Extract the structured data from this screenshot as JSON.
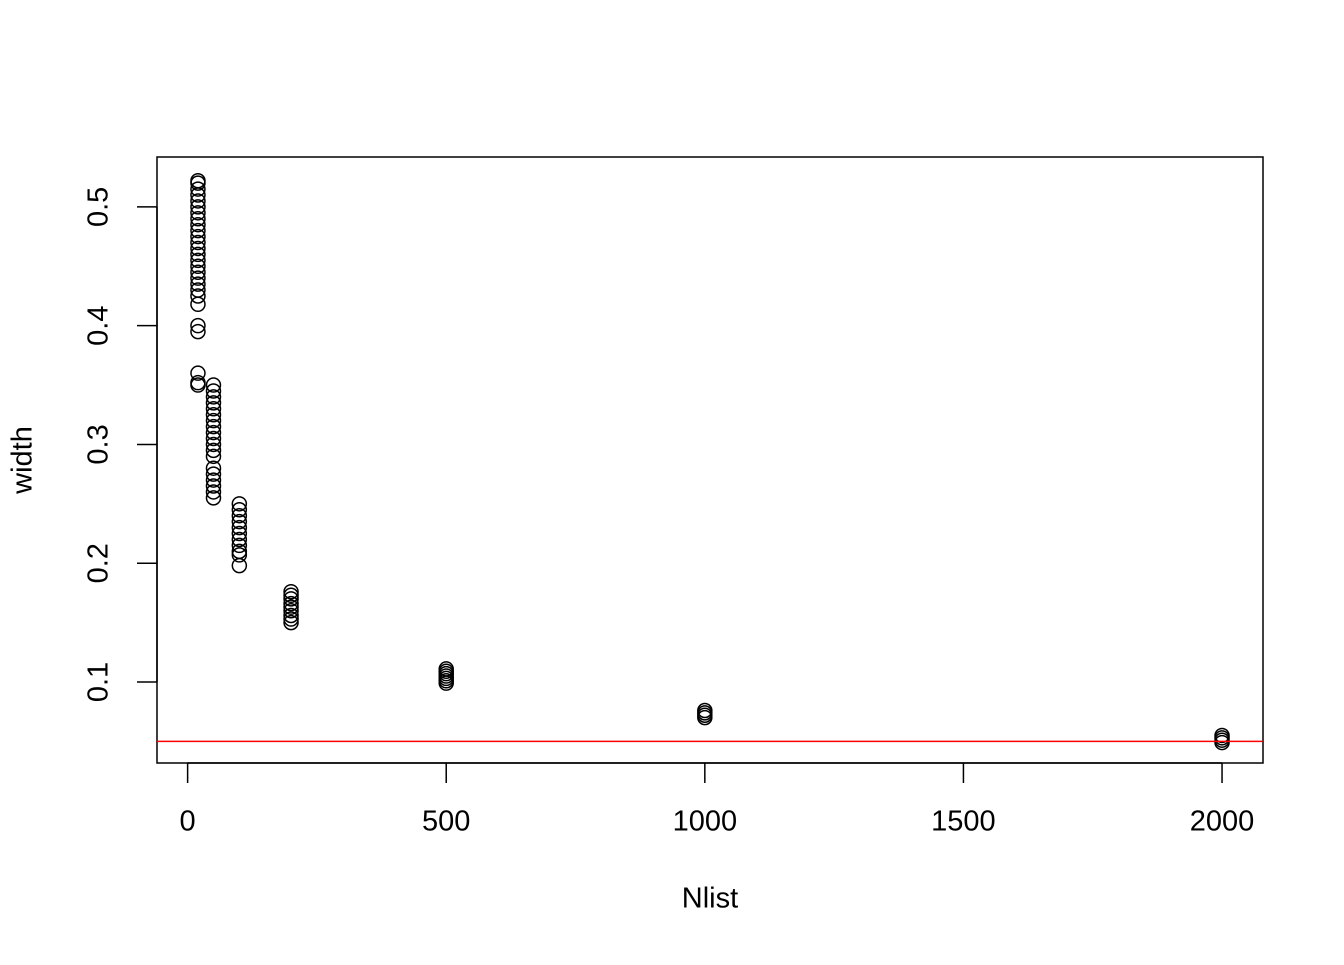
{
  "chart_data": {
    "type": "scatter",
    "x_label": "Nlist",
    "y_label": "width",
    "xlim": [
      -59.2,
      2079.2
    ],
    "ylim": [
      0.0318,
      0.542
    ],
    "xticks": [
      0,
      500,
      1000,
      1500,
      2000
    ],
    "yticks": [
      0.1,
      0.2,
      0.3,
      0.4,
      0.5
    ],
    "hline": {
      "value": 0.05,
      "color": "#ff0000"
    },
    "series": [
      {
        "color": "#000000",
        "x": [
          20,
          20,
          20,
          20,
          20,
          20,
          20,
          20,
          20,
          20,
          20,
          20,
          20,
          20,
          20,
          20,
          20,
          20,
          20,
          20,
          20,
          20,
          20,
          20,
          20,
          20,
          20,
          50,
          50,
          50,
          50,
          50,
          50,
          50,
          50,
          50,
          50,
          50,
          50,
          50,
          50,
          50,
          50,
          50,
          50,
          50,
          100,
          100,
          100,
          100,
          100,
          100,
          100,
          100,
          100,
          100,
          100,
          200,
          200,
          200,
          200,
          200,
          200,
          200,
          200,
          200,
          500,
          500,
          500,
          500,
          500,
          500,
          500,
          1000,
          1000,
          1000,
          1000,
          2000,
          2000,
          2000,
          2000
        ],
        "values": [
          0.35,
          0.352,
          0.36,
          0.395,
          0.4,
          0.418,
          0.425,
          0.43,
          0.435,
          0.44,
          0.445,
          0.45,
          0.455,
          0.46,
          0.465,
          0.47,
          0.475,
          0.48,
          0.485,
          0.49,
          0.495,
          0.5,
          0.505,
          0.51,
          0.515,
          0.52,
          0.522,
          0.255,
          0.26,
          0.265,
          0.27,
          0.275,
          0.28,
          0.29,
          0.295,
          0.3,
          0.305,
          0.31,
          0.315,
          0.32,
          0.325,
          0.33,
          0.335,
          0.34,
          0.345,
          0.35,
          0.198,
          0.207,
          0.21,
          0.215,
          0.22,
          0.225,
          0.23,
          0.235,
          0.24,
          0.245,
          0.25,
          0.15,
          0.153,
          0.156,
          0.16,
          0.163,
          0.166,
          0.17,
          0.173,
          0.176,
          0.099,
          0.101,
          0.103,
          0.105,
          0.107,
          0.109,
          0.111,
          0.07,
          0.072,
          0.074,
          0.076,
          0.049,
          0.051,
          0.053,
          0.055
        ]
      }
    ]
  }
}
